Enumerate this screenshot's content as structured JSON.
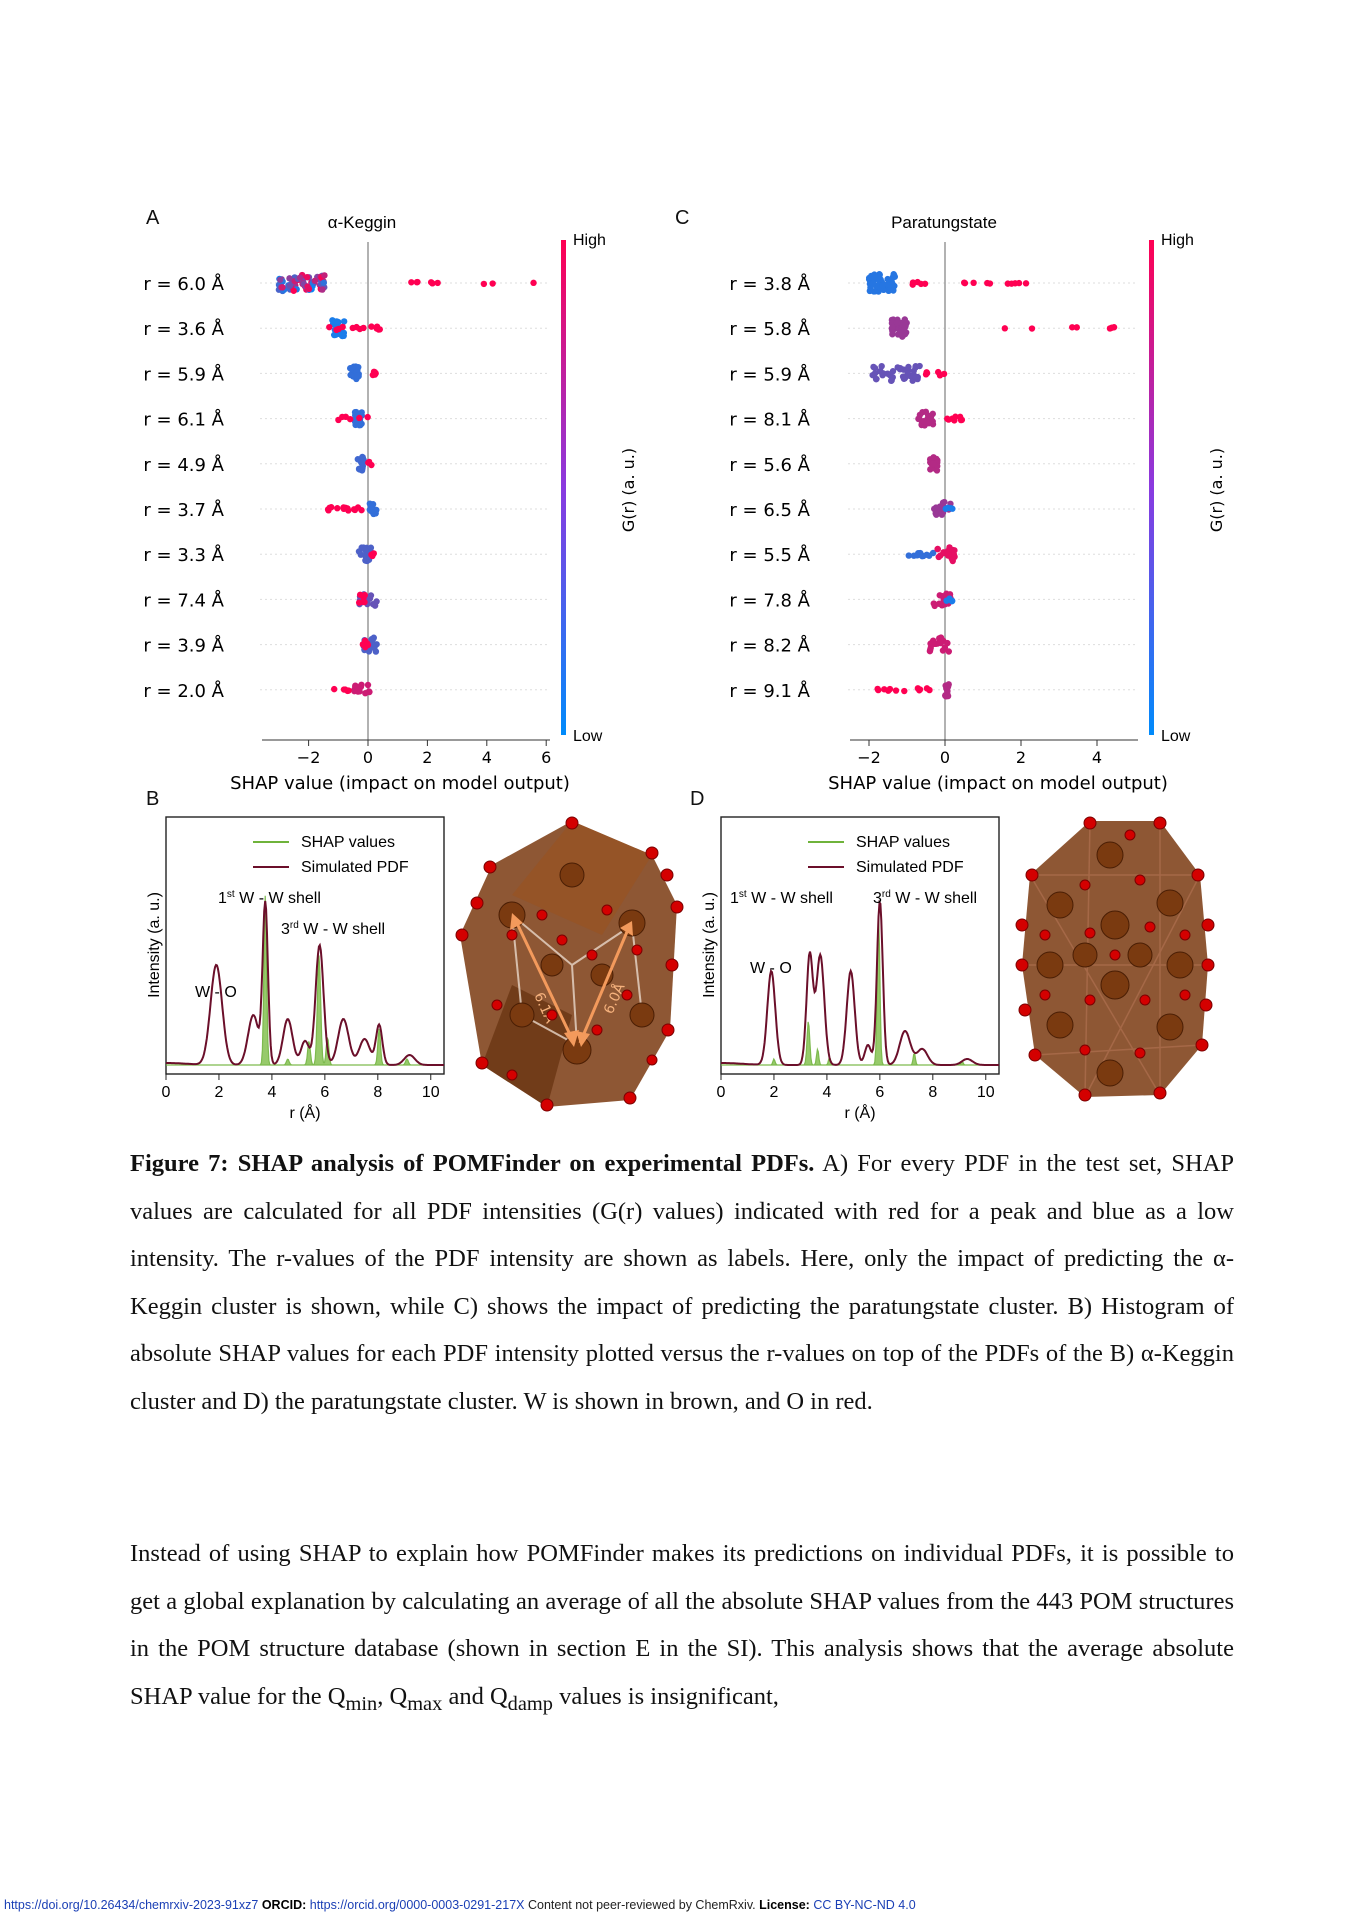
{
  "panels": {
    "A": {
      "letter": "A",
      "title": "α-Keggin",
      "features": [
        "r = 6.0 Å",
        "r = 3.6 Å",
        "r = 5.9 Å",
        "r = 6.1 Å",
        "r = 4.9 Å",
        "r = 3.7 Å",
        "r = 3.3 Å",
        "r = 7.4 Å",
        "r = 3.9 Å",
        "r = 2.0 Å"
      ],
      "xticks": [
        "−2",
        "0",
        "2",
        "4",
        "6"
      ],
      "xlabel": "SHAP value (impact on model output)",
      "colorbar": {
        "high": "High",
        "low": "Low",
        "label": "G(r) (a. u.)"
      }
    },
    "C": {
      "letter": "C",
      "title": "Paratungstate",
      "features": [
        "r = 3.8 Å",
        "r = 5.8 Å",
        "r = 5.9 Å",
        "r = 8.1 Å",
        "r = 5.6 Å",
        "r = 6.5 Å",
        "r = 5.5 Å",
        "r = 7.8 Å",
        "r = 8.2 Å",
        "r = 9.1 Å"
      ],
      "xticks": [
        "−2",
        "0",
        "2",
        "4"
      ],
      "xlabel": "SHAP value (impact on model output)",
      "colorbar": {
        "high": "High",
        "low": "Low",
        "label": "G(r) (a. u.)"
      }
    },
    "B": {
      "letter": "B",
      "legend": [
        "SHAP values",
        "Simulated PDF"
      ],
      "ylabel": "Intensity (a. u.)",
      "xlabel": "r (Å)",
      "xticks": [
        "0",
        "2",
        "4",
        "6",
        "8",
        "10"
      ],
      "annotations": {
        "wo": "W - O",
        "shell1_sup": "st",
        "shell1": "W - W shell",
        "shell3_sup": "rd",
        "shell3": "W - W shell"
      },
      "distances": [
        "6.1Å",
        "6.0Å"
      ]
    },
    "D": {
      "letter": "D",
      "legend": [
        "SHAP values",
        "Simulated PDF"
      ],
      "ylabel": "Intensity (a. u.)",
      "xlabel": "r (Å)",
      "xticks": [
        "0",
        "2",
        "4",
        "6",
        "8",
        "10"
      ],
      "annotations": {
        "wo": "W - O",
        "shell1_sup": "st",
        "shell1": "W - W shell",
        "shell3_sup": "rd",
        "shell3": "W - W shell"
      }
    }
  },
  "colors": {
    "high": "#ff0052",
    "low": "#008bfb",
    "shap_green": "#6fb33b",
    "pdf_line": "#6b0f2a",
    "w_atom": "#7a3a10",
    "o_atom": "#d40000"
  },
  "caption": {
    "bold": "Figure 7: SHAP analysis of POMFinder on experimental PDFs.",
    "text": " A) For every PDF in the test set, SHAP values are calculated for all PDF intensities (G(r) values) indicated with red for a peak and blue as a low intensity. The r-values of the PDF intensity are shown as labels. Here, only the impact of predicting the α-Keggin cluster is shown, while C) shows the impact of predicting the paratungstate cluster. B) Histogram of absolute SHAP values for each PDF intensity plotted versus the r-values on top of the PDFs of the B) α-Keggin cluster and D) the paratungstate cluster. W is shown in brown, and O in red."
  },
  "paragraph": {
    "text1": "Instead of using SHAP to explain how POMFinder makes its predictions on individual PDFs, it is possible to get a global explanation by calculating an average of all the absolute SHAP values from the 443 POM structures in the POM structure database (shown in section E in the SI). This analysis shows that the average absolute SHAP value for the Q",
    "sub_min": "min",
    "sep1": ", Q",
    "sub_max": "max",
    "sep2": " and Q",
    "sub_damp": "damp",
    "text2": " values is insignificant,"
  },
  "footer": {
    "doi": "https://doi.org/10.26434/chemrxiv-2023-91xz7",
    "orcid_label": "ORCID:",
    "orcid": "https://orcid.org/0000-0003-0291-217X",
    "note": "Content not peer-reviewed by ChemRxiv.",
    "license_label": "License:",
    "license": "CC BY-NC-ND 4.0"
  }
}
